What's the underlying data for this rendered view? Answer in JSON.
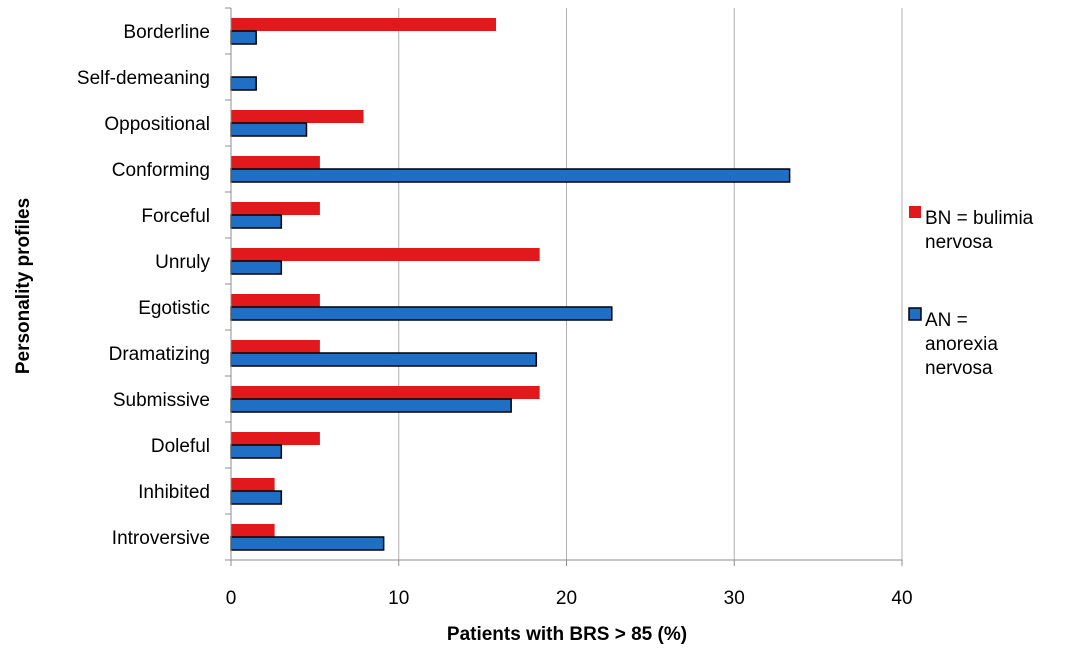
{
  "chart_data": {
    "type": "bar",
    "orientation": "horizontal",
    "title": "",
    "xlabel": "Patients with BRS > 85 (%)",
    "ylabel": "Personality profiles",
    "xlim": [
      0,
      40
    ],
    "xticks": [
      "0",
      "10",
      "20",
      "30",
      "40"
    ],
    "grid": true,
    "legend_position": "right",
    "categories": [
      "Borderline",
      "Self-demeaning",
      "Oppositional",
      "Conforming",
      "Forceful",
      "Unruly",
      "Egotistic",
      "Dramatizing",
      "Submissive",
      "Doleful",
      "Inhibited",
      "Introversive"
    ],
    "series": [
      {
        "name": "BN = bulimia nervosa",
        "legend_lines": [
          "BN = bulimia",
          "nervosa"
        ],
        "color": "#e2191c",
        "values": [
          15.8,
          0,
          7.9,
          5.3,
          5.3,
          18.4,
          5.3,
          5.3,
          18.4,
          5.3,
          2.6,
          2.6
        ]
      },
      {
        "name": "AN = anorexia nervosa",
        "legend_lines": [
          "AN =",
          "anorexia",
          "nervosa"
        ],
        "color": "#1f6fc4",
        "values": [
          1.5,
          1.5,
          4.5,
          33.3,
          3.0,
          3.0,
          22.7,
          18.2,
          16.7,
          3.0,
          3.0,
          9.1
        ]
      }
    ]
  }
}
